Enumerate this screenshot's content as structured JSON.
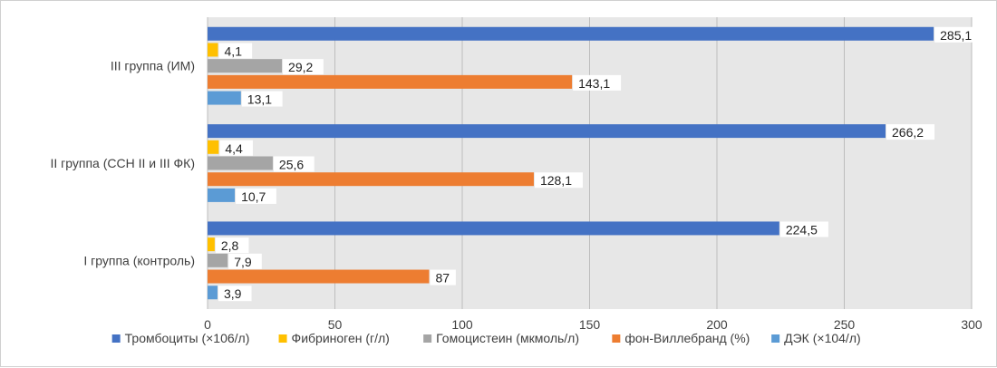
{
  "chart_data": {
    "type": "bar",
    "orientation": "horizontal",
    "categories": [
      "III группа (ИМ)",
      "II группа (ССН II и III ФК)",
      "I группа (контроль)"
    ],
    "series": [
      {
        "name": "Тромбоциты (×106/л)",
        "color": "#4472C4",
        "values": [
          285.1,
          266.2,
          224.5
        ],
        "labels": [
          "285,1",
          "266,2",
          "224,5"
        ]
      },
      {
        "name": "Фибриноген (г/л)",
        "color": "#FFC000",
        "values": [
          4.1,
          4.4,
          2.8
        ],
        "labels": [
          "4,1",
          "4,4",
          "2,8"
        ]
      },
      {
        "name": "Гомоцистеин (мкмоль/л)",
        "color": "#A5A5A5",
        "values": [
          29.2,
          25.6,
          7.9
        ],
        "labels": [
          "29,2",
          "25,6",
          "7,9"
        ]
      },
      {
        "name": "фон-Виллебранд (%)",
        "color": "#ED7D31",
        "values": [
          143.1,
          128.1,
          87
        ],
        "labels": [
          "143,1",
          "128,1",
          "87"
        ]
      },
      {
        "name": "ДЭК (×104/л)",
        "color": "#5B9BD5",
        "values": [
          13.1,
          10.7,
          3.9
        ],
        "labels": [
          "13,1",
          "10,7",
          "3,9"
        ]
      }
    ],
    "xlim": [
      0,
      300
    ],
    "xticks": [
      0,
      50,
      100,
      150,
      200,
      250,
      300
    ],
    "xtick_labels": [
      "0",
      "50",
      "100",
      "150",
      "200",
      "250",
      "300"
    ],
    "grid": true,
    "legend_position": "bottom",
    "plot_background": "#E7E7E7"
  }
}
